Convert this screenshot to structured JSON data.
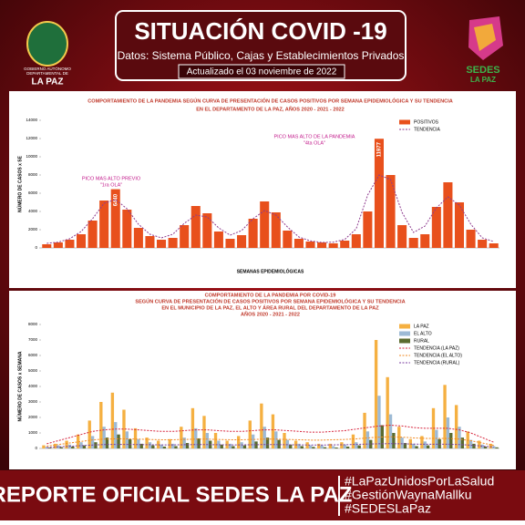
{
  "header": {
    "title": "SITUACIÓN COVID -19",
    "subtitle": "Datos: Sistema Público, Cajas y Establecimientos Privados",
    "updated": "Actualizado el  03 noviembre  de 2022",
    "left_logo": [
      "GOBIERNO AUTÓNOMO",
      "DEPARTAMENTAL DE",
      "LA PAZ"
    ],
    "right_logo": [
      "SEDES",
      "LA PAZ"
    ]
  },
  "chart_data": [
    {
      "type": "bar",
      "title": [
        "COMPORTAMIENTO DE LA PANDEMIA SEGÚN CURVA DE PRESENTACIÓN DE CASOS POSITIVOS POR SEMANA EPIDEMIOLÓGICA Y SU TENDENCIA",
        "EN EL DEPARTAMENTO DE LA PAZ, AÑOS 2020 - 2021 - 2022"
      ],
      "y_label": "NÚMERO DE CASOS x SE",
      "x_label": "SEMANAS EPIDEMIOLÓGICAS",
      "annotations": [
        "PICO MAS ALTO PREVIO",
        "\"1ra OLA\"",
        "PICO MAS ALTO DE LA PANDEMIA",
        "\"4ta OLA\""
      ],
      "ylim": [
        0,
        14000
      ],
      "yticks": [
        0,
        2000,
        4000,
        6000,
        8000,
        10000,
        12000,
        14000
      ],
      "legend": "upper right",
      "series": [
        {
          "name": "POSITIVOS",
          "kind": "bar",
          "color": "#e8501c",
          "values": [
            400,
            600,
            900,
            1500,
            3000,
            5200,
            6440,
            4200,
            2200,
            1300,
            900,
            1100,
            2500,
            4600,
            3800,
            1800,
            1000,
            1400,
            3200,
            5100,
            3900,
            1900,
            1000,
            700,
            600,
            500,
            800,
            1500,
            4000,
            11977,
            8000,
            2500,
            1100,
            1500,
            4500,
            7200,
            5000,
            2000,
            900,
            500
          ],
          "value_labels": [
            null,
            null,
            null,
            null,
            null,
            null,
            "6440",
            null,
            null,
            null,
            null,
            null,
            null,
            null,
            null,
            null,
            null,
            null,
            null,
            null,
            null,
            null,
            null,
            null,
            null,
            null,
            null,
            null,
            null,
            "11977",
            null,
            null,
            null,
            null,
            null,
            null,
            null,
            null,
            null,
            null
          ]
        },
        {
          "name": "TENDENCIA",
          "kind": "line",
          "color": "#8e3a8e",
          "values": [
            500,
            630,
            1000,
            1800,
            3200,
            4900,
            5300,
            4300,
            2600,
            1500,
            1100,
            1500,
            2700,
            3600,
            3400,
            2200,
            1400,
            1900,
            3200,
            4100,
            3600,
            2300,
            1200,
            770,
            600,
            630,
            930,
            2100,
            5800,
            8000,
            7500,
            3900,
            1700,
            2400,
            4400,
            5600,
            4700,
            2600,
            1100,
            700
          ]
        }
      ]
    },
    {
      "type": "bar",
      "title": [
        "COMPORTAMIENTO DE LA PANDEMIA POR COVID-19",
        "SEGÚN CURVA DE PRESENTACIÓN DE CASOS POSITIVOS POR SEMANA EPIDEMIOLÓGICA Y SU TENDENCIA",
        "EN EL  MUNICIPIO DE LA PAZ, EL ALTO Y ÁREA RURAL DEL DEPARTAMENTO DE LA PAZ",
        "AÑOS 2020 - 2021 - 2022"
      ],
      "y_label": "NÚMERO DE CASOS x SEMANA",
      "ylim": [
        0,
        8000
      ],
      "yticks": [
        0,
        1000,
        2000,
        3000,
        4000,
        5000,
        6000,
        7000,
        8000
      ],
      "legend": "upper right",
      "series": [
        {
          "name": "LA PAZ",
          "kind": "bar",
          "color": "#f5b041",
          "values": [
            200,
            300,
            500,
            900,
            1800,
            3000,
            3600,
            2500,
            1300,
            700,
            500,
            600,
            1400,
            2600,
            2100,
            1000,
            500,
            800,
            1800,
            2900,
            2200,
            1000,
            500,
            400,
            300,
            300,
            400,
            900,
            2300,
            7000,
            4600,
            1400,
            600,
            800,
            2600,
            4100,
            2800,
            1100,
            500,
            300
          ]
        },
        {
          "name": "EL ALTO",
          "kind": "bar",
          "color": "#9dbad5",
          "values": [
            100,
            200,
            250,
            400,
            800,
            1400,
            1700,
            1100,
            600,
            400,
            250,
            300,
            700,
            1300,
            1000,
            500,
            300,
            400,
            900,
            1400,
            1100,
            550,
            300,
            200,
            200,
            150,
            250,
            400,
            1100,
            3400,
            2200,
            700,
            300,
            450,
            1200,
            2000,
            1400,
            550,
            250,
            150
          ]
        },
        {
          "name": "RURAL",
          "kind": "bar",
          "color": "#5b6b2e",
          "values": [
            50,
            80,
            120,
            200,
            400,
            700,
            900,
            600,
            300,
            200,
            120,
            150,
            350,
            650,
            500,
            250,
            150,
            200,
            450,
            700,
            550,
            250,
            150,
            100,
            80,
            60,
            120,
            200,
            550,
            1500,
            1000,
            350,
            150,
            200,
            600,
            1000,
            700,
            300,
            120,
            70
          ]
        },
        {
          "name": "TENDENCIA (LA PAZ)",
          "kind": "line",
          "color": "#d7263d",
          "values": [
            300,
            500,
            700,
            900,
            1100,
            1200,
            1250,
            1250,
            1200,
            1150,
            1100,
            1100,
            1150,
            1200,
            1200,
            1150,
            1100,
            1100,
            1150,
            1200,
            1200,
            1150,
            1100,
            1050,
            1050,
            1100,
            1150,
            1250,
            1350,
            1450,
            1500,
            1450,
            1350,
            1300,
            1300,
            1300,
            1200,
            1000,
            700,
            400
          ]
        },
        {
          "name": "TENDENCIA (EL ALTO)",
          "kind": "line",
          "color": "#f08a24",
          "values": [
            150,
            250,
            350,
            450,
            550,
            600,
            620,
            620,
            600,
            580,
            560,
            560,
            580,
            600,
            600,
            580,
            560,
            560,
            580,
            600,
            600,
            580,
            560,
            540,
            540,
            560,
            580,
            620,
            680,
            730,
            750,
            730,
            680,
            650,
            650,
            650,
            600,
            500,
            350,
            200
          ]
        },
        {
          "name": "TENDENCIA (RURAL)",
          "kind": "line",
          "color": "#7b3fa0",
          "values": [
            60,
            100,
            140,
            180,
            220,
            250,
            260,
            260,
            250,
            240,
            230,
            230,
            240,
            250,
            250,
            240,
            230,
            230,
            240,
            250,
            250,
            240,
            230,
            220,
            220,
            230,
            240,
            260,
            280,
            300,
            310,
            300,
            280,
            270,
            270,
            270,
            250,
            210,
            150,
            90
          ]
        }
      ]
    }
  ],
  "footer": {
    "title": "REPORTE OFICIAL SEDES LA PAZ",
    "hashtags": [
      "#LaPazUnidosPorLaSalud",
      "#GestiónWaynaMallku",
      "#SEDESLaPaz"
    ]
  }
}
